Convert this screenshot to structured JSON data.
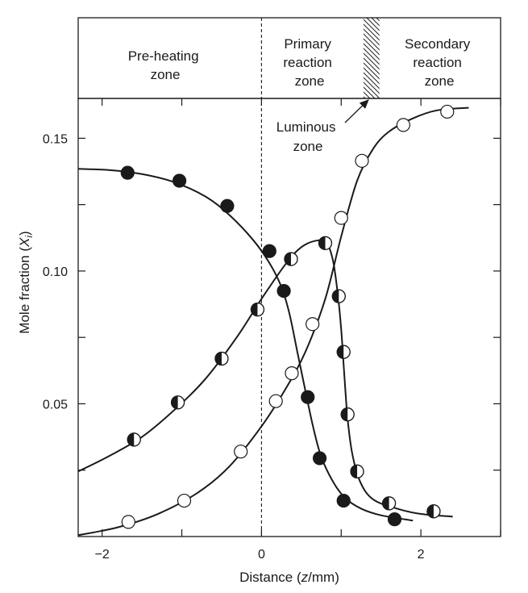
{
  "chart_data": {
    "type": "scatter",
    "xlabel": "Distance (z/mm)",
    "xlabel_parts": [
      "Distance (",
      "z",
      "/mm)"
    ],
    "ylabel": "Mole fraction (Xi)",
    "ylabel_parts": [
      "Mole fraction (",
      "X",
      "i",
      ")"
    ],
    "xlim": [
      -2.3,
      3.0
    ],
    "ylim": [
      0.0,
      0.165
    ],
    "x_ticks": [
      -2,
      0,
      2
    ],
    "x_tick_labels": [
      "−2",
      "0",
      "2"
    ],
    "y_ticks": [
      0.05,
      0.1,
      0.15
    ],
    "y_tick_labels": [
      "0.05",
      "0.10",
      "0.15"
    ],
    "grid": false,
    "zones": {
      "preheating": [
        "Pre-heating",
        "zone"
      ],
      "primary": [
        "Primary",
        "reaction",
        "zone"
      ],
      "secondary": [
        "Secondary",
        "reaction",
        "zone"
      ],
      "luminous": [
        "Luminous",
        "zone"
      ],
      "flame_front_x": 0,
      "luminous_band_x": [
        1.28,
        1.48
      ]
    },
    "series": [
      {
        "marker": "filled",
        "points": [
          [
            -1.68,
            0.137
          ],
          [
            -1.03,
            0.134
          ],
          [
            -0.43,
            0.1245
          ],
          [
            0.1,
            0.1075
          ],
          [
            0.28,
            0.0925
          ],
          [
            0.58,
            0.0525
          ],
          [
            0.73,
            0.0295
          ],
          [
            1.03,
            0.0135
          ],
          [
            1.67,
            0.0065
          ]
        ],
        "curve": [
          [
            -2.3,
            0.1385
          ],
          [
            -1.9,
            0.138
          ],
          [
            -1.5,
            0.1365
          ],
          [
            -1.1,
            0.1335
          ],
          [
            -0.7,
            0.128
          ],
          [
            -0.4,
            0.121
          ],
          [
            -0.1,
            0.1115
          ],
          [
            0.1,
            0.103
          ],
          [
            0.25,
            0.094
          ],
          [
            0.35,
            0.084
          ],
          [
            0.45,
            0.0695
          ],
          [
            0.55,
            0.055
          ],
          [
            0.65,
            0.041
          ],
          [
            0.75,
            0.03
          ],
          [
            0.9,
            0.0205
          ],
          [
            1.05,
            0.0145
          ],
          [
            1.25,
            0.0105
          ],
          [
            1.5,
            0.008
          ],
          [
            1.9,
            0.006
          ]
        ]
      },
      {
        "marker": "half-filled",
        "points": [
          [
            -1.6,
            0.0365
          ],
          [
            -1.05,
            0.0505
          ],
          [
            -0.5,
            0.067
          ],
          [
            -0.05,
            0.0855
          ],
          [
            0.37,
            0.1045
          ],
          [
            0.8,
            0.1105
          ],
          [
            0.97,
            0.0905
          ],
          [
            1.03,
            0.0695
          ],
          [
            1.08,
            0.046
          ],
          [
            1.2,
            0.0245
          ],
          [
            1.6,
            0.0125
          ],
          [
            2.16,
            0.0095
          ]
        ],
        "curve": [
          [
            -2.3,
            0.0245
          ],
          [
            -1.9,
            0.0305
          ],
          [
            -1.5,
            0.0375
          ],
          [
            -1.1,
            0.0475
          ],
          [
            -0.7,
            0.0595
          ],
          [
            -0.3,
            0.0755
          ],
          [
            0.0,
            0.0895
          ],
          [
            0.3,
            0.1025
          ],
          [
            0.5,
            0.109
          ],
          [
            0.7,
            0.1115
          ],
          [
            0.82,
            0.1105
          ],
          [
            0.9,
            0.1035
          ],
          [
            0.96,
            0.0905
          ],
          [
            1.0,
            0.078
          ],
          [
            1.04,
            0.0605
          ],
          [
            1.08,
            0.0445
          ],
          [
            1.14,
            0.031
          ],
          [
            1.24,
            0.0205
          ],
          [
            1.4,
            0.014
          ],
          [
            1.7,
            0.0105
          ],
          [
            2.0,
            0.0085
          ],
          [
            2.4,
            0.0075
          ]
        ]
      },
      {
        "marker": "open",
        "points": [
          [
            -1.67,
            0.0055
          ],
          [
            -0.97,
            0.0135
          ],
          [
            -0.26,
            0.032
          ],
          [
            0.18,
            0.051
          ],
          [
            0.38,
            0.0615
          ],
          [
            0.64,
            0.08
          ],
          [
            1.0,
            0.12
          ],
          [
            1.26,
            0.1415
          ],
          [
            1.78,
            0.155
          ],
          [
            2.33,
            0.16
          ]
        ],
        "curve": [
          [
            -2.3,
            0.0005
          ],
          [
            -1.8,
            0.0035
          ],
          [
            -1.3,
            0.0085
          ],
          [
            -0.8,
            0.0165
          ],
          [
            -0.4,
            0.0265
          ],
          [
            0.0,
            0.0415
          ],
          [
            0.3,
            0.0555
          ],
          [
            0.55,
            0.0695
          ],
          [
            0.8,
            0.0895
          ],
          [
            1.0,
            0.113
          ],
          [
            1.2,
            0.134
          ],
          [
            1.4,
            0.146
          ],
          [
            1.6,
            0.1525
          ],
          [
            1.9,
            0.1575
          ],
          [
            2.2,
            0.1605
          ],
          [
            2.6,
            0.1615
          ]
        ]
      }
    ]
  }
}
